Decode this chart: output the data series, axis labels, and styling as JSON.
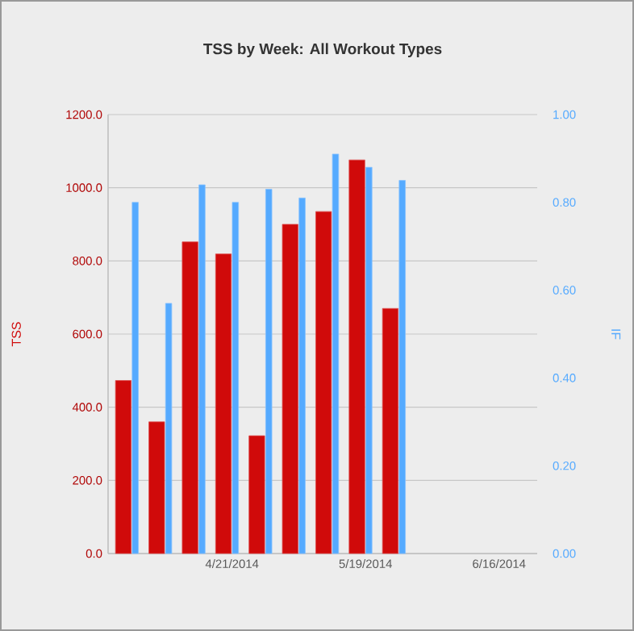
{
  "chart_data": {
    "type": "bar",
    "title": "TSS by Week: All Workout Types",
    "ylabel": "TSS",
    "y2label": "IF",
    "x": [
      "2014-03-31",
      "2014-04-07",
      "2014-04-14",
      "2014-04-21",
      "2014-04-28",
      "2014-05-05",
      "2014-05-12",
      "2014-05-19",
      "2014-05-26"
    ],
    "xlim": [
      "2014-03-26",
      "2014-06-24"
    ],
    "xticks": [
      {
        "value": "2014-04-21",
        "label": "4/21/2014"
      },
      {
        "value": "2014-05-19",
        "label": "5/19/2014"
      },
      {
        "value": "2014-06-16",
        "label": "6/16/2014"
      }
    ],
    "ylim": [
      0,
      1200
    ],
    "yticks": [
      {
        "value": 0,
        "label": "0.0"
      },
      {
        "value": 200,
        "label": "200.0"
      },
      {
        "value": 400,
        "label": "400.0"
      },
      {
        "value": 600,
        "label": "600.0"
      },
      {
        "value": 800,
        "label": "800.0"
      },
      {
        "value": 1000,
        "label": "1000.0"
      },
      {
        "value": 1200,
        "label": "1200.0"
      }
    ],
    "y2lim": [
      0,
      1
    ],
    "y2ticks": [
      {
        "value": 0,
        "label": "0.00"
      },
      {
        "value": 0.2,
        "label": "0.20"
      },
      {
        "value": 0.4,
        "label": "0.40"
      },
      {
        "value": 0.6,
        "label": "0.60"
      },
      {
        "value": 0.8,
        "label": "0.80"
      },
      {
        "value": 1,
        "label": "1.00"
      }
    ],
    "series": [
      {
        "color": "#d00a0a",
        "values": [
          473,
          360,
          852,
          819,
          322,
          900,
          935,
          1076,
          670
        ]
      },
      {
        "color": "#55aaff",
        "axis": "y2",
        "values": [
          0.8,
          0.57,
          0.84,
          0.8,
          0.83,
          0.81,
          0.91,
          0.88,
          0.85
        ]
      }
    ],
    "grid": "y"
  }
}
